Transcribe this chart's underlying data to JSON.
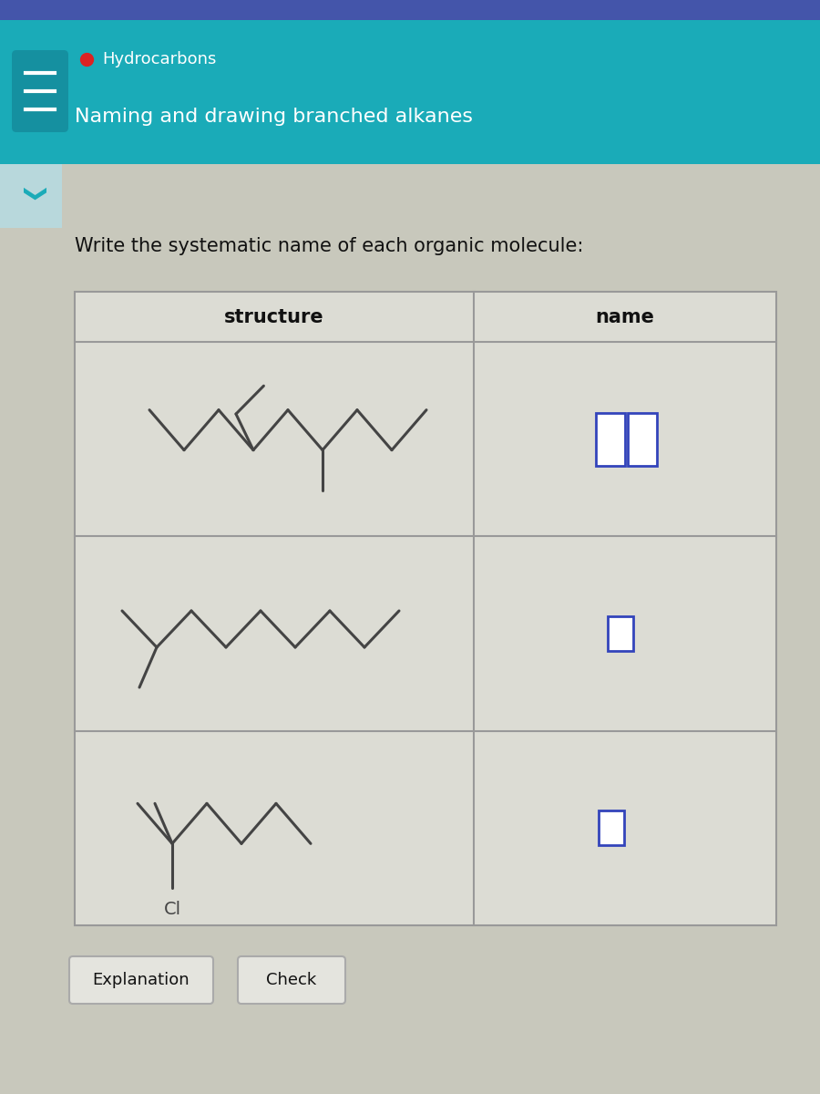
{
  "title_small": "Hydrocarbons",
  "title_large": "Naming and drawing branched alkanes",
  "question": "Write the systematic name of each organic molecule:",
  "col_headers": [
    "structure",
    "name"
  ],
  "header_bg": "#1aabb8",
  "body_bg": "#c8c8bc",
  "table_bg": "#dcdcd4",
  "table_border": "#999999",
  "molecule_color": "#444444",
  "input_box_color": "#3344bb",
  "button_explanation": "Explanation",
  "button_check": "Check",
  "button_bg": "#e4e4de",
  "button_border": "#aaaaaa",
  "chevron_bg": "#b8d8dc",
  "chevron_color": "#1aabb8"
}
